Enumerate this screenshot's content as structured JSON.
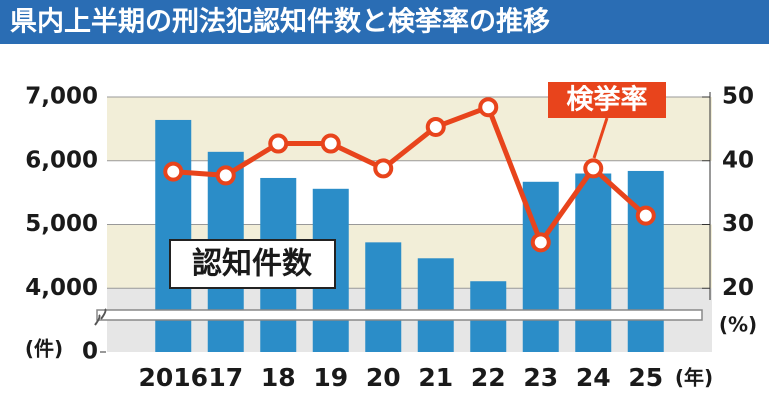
{
  "chart_data": {
    "type": "bar_line",
    "title": "県内上半期の刑法犯認知件数と検挙率の推移",
    "categories": [
      "2016",
      "17",
      "18",
      "19",
      "20",
      "21",
      "22",
      "23",
      "24",
      "25"
    ],
    "x_unit": "(年)",
    "series": [
      {
        "name": "認知件数",
        "type": "bar",
        "color": "#2b8dc8",
        "values": [
          6640,
          6140,
          5730,
          5560,
          4720,
          4470,
          4110,
          5670,
          5800,
          5840
        ]
      },
      {
        "name": "検挙率",
        "type": "line",
        "axis": "y2",
        "color": "#e8441c",
        "values": [
          38.3,
          37.7,
          42.7,
          42.7,
          38.8,
          45.3,
          48.4,
          27.2,
          38.8,
          31.4
        ]
      }
    ],
    "ylim": [
      3000,
      7000
    ],
    "yticks": [
      0,
      {
        "value": 4000,
        "label": "4,000"
      },
      {
        "value": 5000,
        "label": "5,000"
      },
      {
        "value": 6000,
        "label": "6,000"
      },
      {
        "value": 7000,
        "label": "7,000"
      }
    ],
    "y_unit": "(件)",
    "y2lim": [
      10,
      50
    ],
    "y2ticks": [
      20,
      30,
      40,
      50
    ],
    "y2_unit": "(%)",
    "axis_break": true,
    "grid": true
  }
}
